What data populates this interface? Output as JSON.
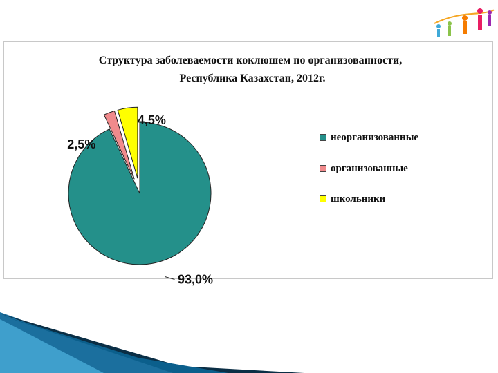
{
  "colors": {
    "neorganized": "#24908A",
    "organized": "#F08A8C",
    "school": "#FFFF00",
    "border": "#c8c8c8",
    "deco_dark": "#0B5F8C",
    "deco_light": "#4FB3E0"
  },
  "logo": {
    "icon": "children-figures-logo"
  },
  "chart_data": {
    "type": "pie",
    "title": "Структура заболеваемости коклюшем по организованности,",
    "subtitle": "Республика Казахстан, 2012г.",
    "legend_position": "right",
    "slices": [
      {
        "name": "неорганизованные",
        "value": 93.0,
        "label": "93,0%",
        "color": "#24908A",
        "exploded": false
      },
      {
        "name": "организованные",
        "value": 2.5,
        "label": "2,5%",
        "color": "#F08A8C",
        "exploded": true
      },
      {
        "name": "школьники",
        "value": 4.5,
        "label": "4,5%",
        "color": "#FFFF00",
        "exploded": true
      }
    ]
  }
}
